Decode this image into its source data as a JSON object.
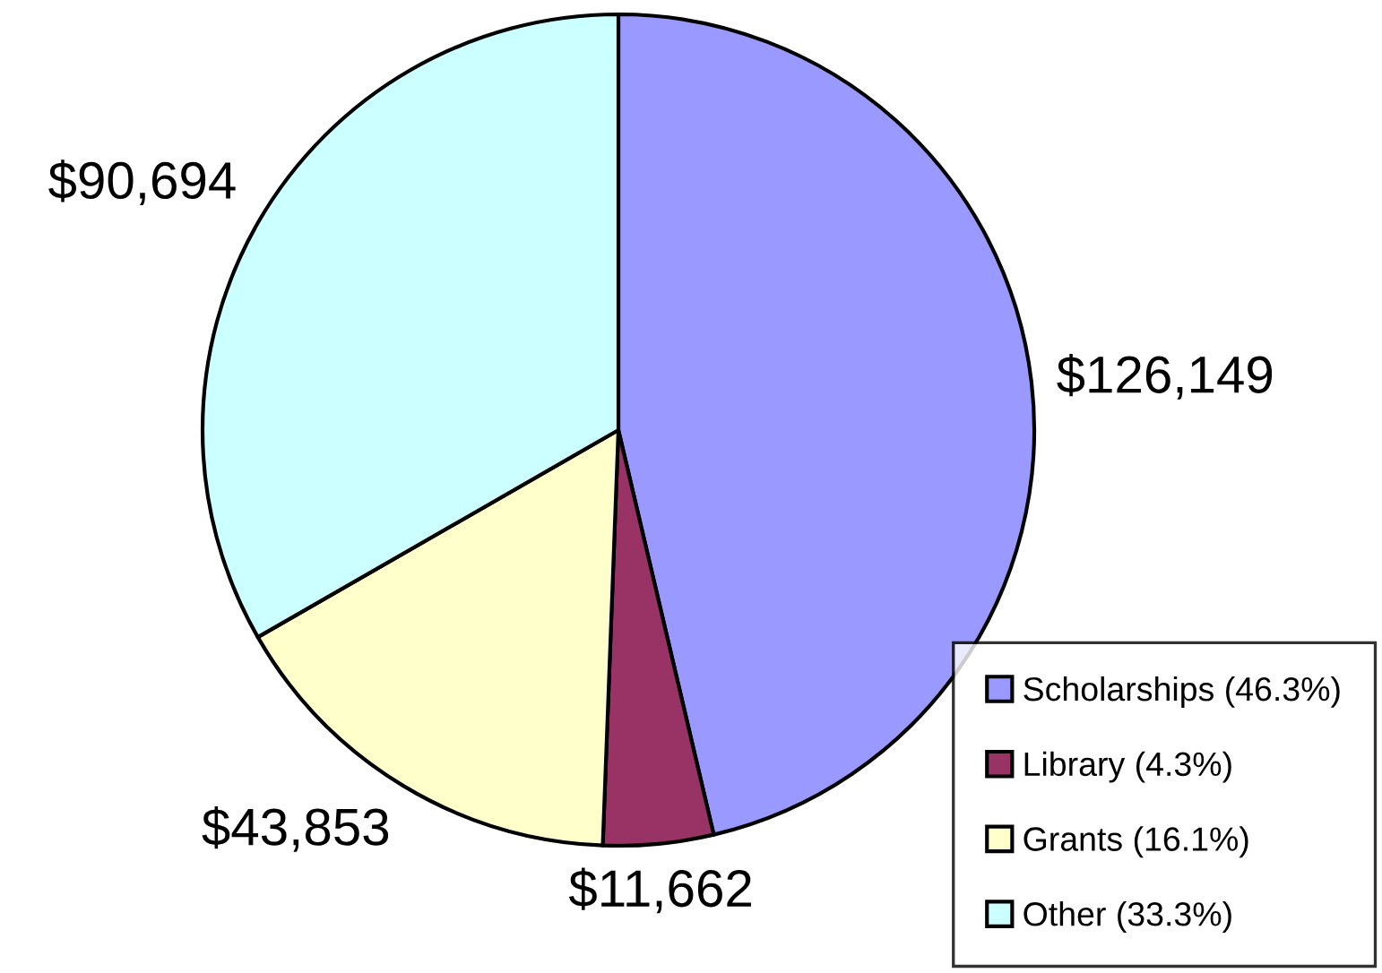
{
  "chart_data": {
    "type": "pie",
    "categories": [
      "Scholarships (46.3%)",
      "Library (4.3%)",
      "Grants (16.1%)",
      "Other (33.3%)"
    ],
    "values": [
      126149,
      11662,
      43853,
      90694
    ],
    "colors": [
      "#9999ff",
      "#993366",
      "#ffffcc",
      "#ccffff"
    ],
    "value_labels": [
      "$126,149",
      "$11,662",
      "$43,853",
      "$90,694"
    ],
    "legend": "bottom right"
  }
}
